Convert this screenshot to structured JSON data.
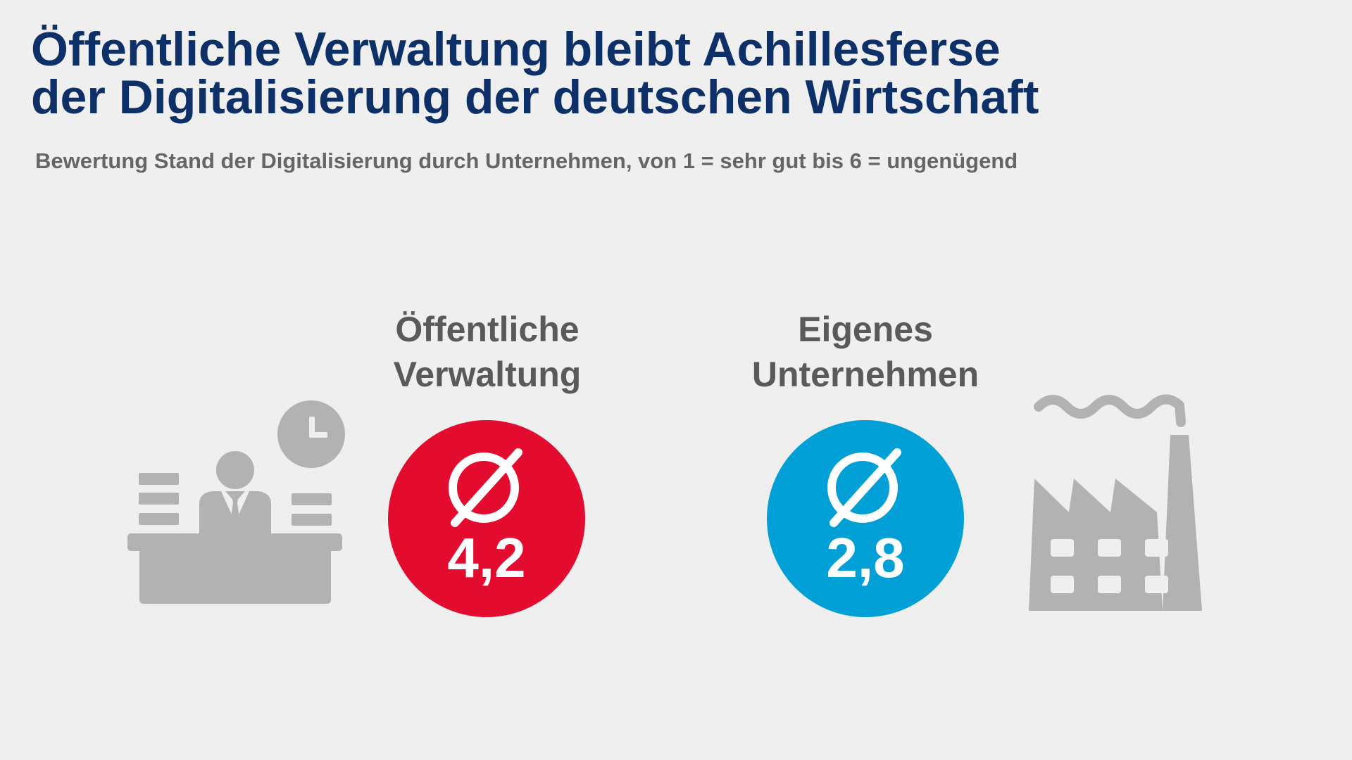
{
  "header": {
    "title_line1": "Öffentliche Verwaltung bleibt Achillesferse",
    "title_line2": "der Digitalisierung der deutschen Wirtschaft",
    "subtitle": "Bewertung Stand der Digitalisierung durch Unternehmen, von 1 = sehr gut bis 6 = ungenügend"
  },
  "blocks": [
    {
      "label_line1": "Öffentliche",
      "label_line2": "Verwaltung",
      "average": "4,2",
      "average_value": 4.2,
      "color": "#e30c2f",
      "icon": "office-desk-icon"
    },
    {
      "label_line1": "Eigenes",
      "label_line2": "Unternehmen",
      "average": "2,8",
      "average_value": 2.8,
      "color": "#00a0d6",
      "icon": "factory-icon"
    }
  ],
  "colors": {
    "title": "#0d3069",
    "text_gray": "#5a5a5a",
    "icon_gray": "#b2b2b2",
    "background": "#efefef"
  },
  "average_symbol": "Ø"
}
